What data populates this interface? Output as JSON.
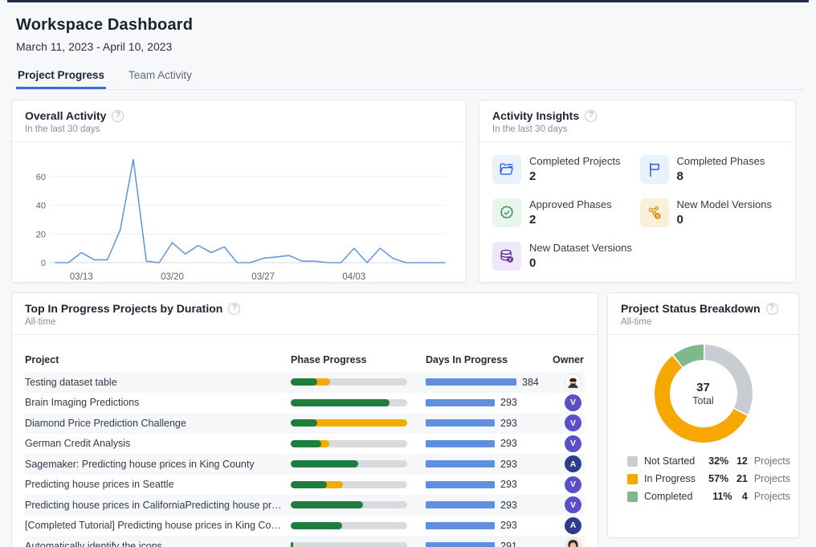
{
  "header": {
    "title": "Workspace Dashboard",
    "date_range": "March 11, 2023 - April 10, 2023"
  },
  "tabs": [
    {
      "label": "Project Progress",
      "active": true
    },
    {
      "label": "Team Activity",
      "active": false
    }
  ],
  "help_icon_glyph": "?",
  "overall_activity": {
    "title": "Overall Activity",
    "subtitle": "In the last 30 days",
    "chart_data": {
      "type": "line",
      "x": [
        "03/11",
        "03/12",
        "03/13",
        "03/14",
        "03/15",
        "03/16",
        "03/17",
        "03/18",
        "03/19",
        "03/20",
        "03/21",
        "03/22",
        "03/23",
        "03/24",
        "03/25",
        "03/26",
        "03/27",
        "03/28",
        "03/29",
        "03/30",
        "03/31",
        "04/01",
        "04/02",
        "04/03",
        "04/04",
        "04/05",
        "04/06",
        "04/07",
        "04/08",
        "04/09",
        "04/10"
      ],
      "values": [
        0,
        0,
        7,
        2,
        2,
        23,
        72,
        1,
        0,
        14,
        6,
        12,
        7,
        11,
        0,
        0,
        3,
        4,
        5,
        1,
        1,
        0,
        0,
        10,
        0,
        10,
        3,
        0,
        0,
        0,
        0
      ],
      "x_tick_labels": [
        "03/13",
        "03/20",
        "03/27",
        "04/03"
      ],
      "y_ticks": [
        0,
        20,
        40,
        60
      ],
      "ylim": [
        0,
        75
      ],
      "line_color": "#6798dd",
      "grid": true,
      "title": "Overall Activity",
      "xlabel": "",
      "ylabel": ""
    }
  },
  "activity_insights": {
    "title": "Activity Insights",
    "subtitle": "In the last 30 days",
    "stats": [
      {
        "label": "Completed Projects",
        "value": "2",
        "icon": "completed-projects-folder-icon",
        "bg": "#e9f1fb"
      },
      {
        "label": "Completed Phases",
        "value": "8",
        "icon": "completed-phases-flag-icon",
        "bg": "#e9f1fb"
      },
      {
        "label": "Approved Phases",
        "value": "2",
        "icon": "approved-phases-seal-icon",
        "bg": "#e8f5ed"
      },
      {
        "label": "New Model Versions",
        "value": "0",
        "icon": "new-model-versions-icon",
        "bg": "#faf0da"
      },
      {
        "label": "New Dataset Versions",
        "value": "0",
        "icon": "new-dataset-versions-icon",
        "bg": "#eee8fa"
      }
    ]
  },
  "projects_table": {
    "title": "Top In Progress Projects by Duration",
    "subtitle": "All-time",
    "columns": [
      "Project",
      "Phase Progress",
      "Days In Progress",
      "Owner"
    ],
    "days_scale_max": 384,
    "colors": {
      "completed": "#1e7d3f",
      "in_progress": "#f2ab00",
      "track": "#d8dade",
      "days_bar": "#5f8fde"
    },
    "rows": [
      {
        "project": "Testing dataset table",
        "green_pct": 23,
        "yellow_pct": 11,
        "days": 384,
        "owner": {
          "type": "photo",
          "name": "bearded-man-avatar"
        }
      },
      {
        "project": "Brain Imaging Predictions",
        "green_pct": 85,
        "yellow_pct": 0,
        "days": 293,
        "owner": {
          "type": "letter",
          "letter": "V",
          "color": "#5b4ec9"
        }
      },
      {
        "project": "Diamond Price Prediction Challenge",
        "green_pct": 23,
        "yellow_pct": 77,
        "days": 293,
        "owner": {
          "type": "letter",
          "letter": "V",
          "color": "#5b4ec9"
        }
      },
      {
        "project": "German Credit Analysis",
        "green_pct": 26,
        "yellow_pct": 7,
        "days": 293,
        "owner": {
          "type": "letter",
          "letter": "V",
          "color": "#5b4ec9"
        }
      },
      {
        "project": "Sagemaker: Predicting house prices in King County",
        "green_pct": 58,
        "yellow_pct": 0,
        "days": 293,
        "owner": {
          "type": "letter",
          "letter": "A",
          "color": "#2e3b8f"
        }
      },
      {
        "project": "Predicting house prices in Seattle",
        "green_pct": 31,
        "yellow_pct": 14,
        "days": 293,
        "owner": {
          "type": "letter",
          "letter": "V",
          "color": "#5b4ec9"
        }
      },
      {
        "project": "Predicting house prices in CaliforniaPredicting house pric...",
        "green_pct": 62,
        "yellow_pct": 0,
        "days": 293,
        "owner": {
          "type": "letter",
          "letter": "V",
          "color": "#5b4ec9"
        }
      },
      {
        "project": "[Completed Tutorial] Predicting house prices in King Cou...",
        "green_pct": 44,
        "yellow_pct": 0,
        "days": 293,
        "owner": {
          "type": "letter",
          "letter": "A",
          "color": "#2e3b8f"
        }
      },
      {
        "project": "Automatically identify the icons",
        "green_pct": 2,
        "yellow_pct": 0,
        "days": 291,
        "owner": {
          "type": "photo",
          "name": "dark-haired-woman-avatar"
        }
      }
    ]
  },
  "status_breakdown": {
    "title": "Project Status Breakdown",
    "subtitle": "All-time",
    "chart_data": {
      "type": "pie",
      "total": "37",
      "total_label": "Total",
      "unit_label": "Projects",
      "legend_position": "bottom",
      "segments": [
        {
          "label": "Not Started",
          "pct": 32,
          "count": 12,
          "color": "#c9ccd2"
        },
        {
          "label": "In Progress",
          "pct": 57,
          "count": 21,
          "color": "#f7a800"
        },
        {
          "label": "Completed",
          "pct": 11,
          "count": 4,
          "color": "#7fb98b"
        }
      ]
    }
  }
}
